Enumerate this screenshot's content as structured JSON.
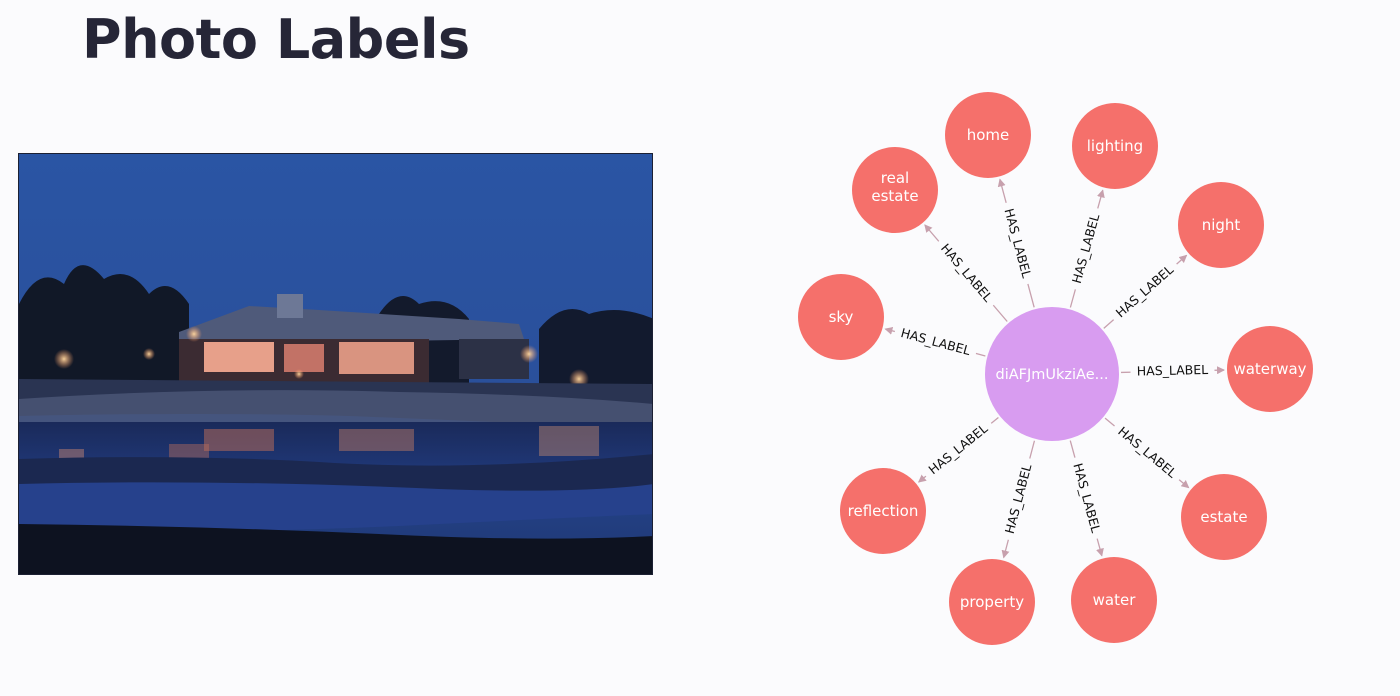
{
  "page": {
    "title": "Photo Labels"
  },
  "photo": {
    "subject": "house-at-night-reflection"
  },
  "graph": {
    "center": {
      "label": "diAFJmUkziAe...",
      "color": "#d89cf0"
    },
    "relationship": "HAS_LABEL",
    "label_color": "#f5706b",
    "edge_color": "#c7a0ad",
    "labels": [
      "home",
      "lighting",
      "real estate",
      "night",
      "sky",
      "waterway",
      "reflection",
      "estate",
      "property",
      "water"
    ]
  }
}
